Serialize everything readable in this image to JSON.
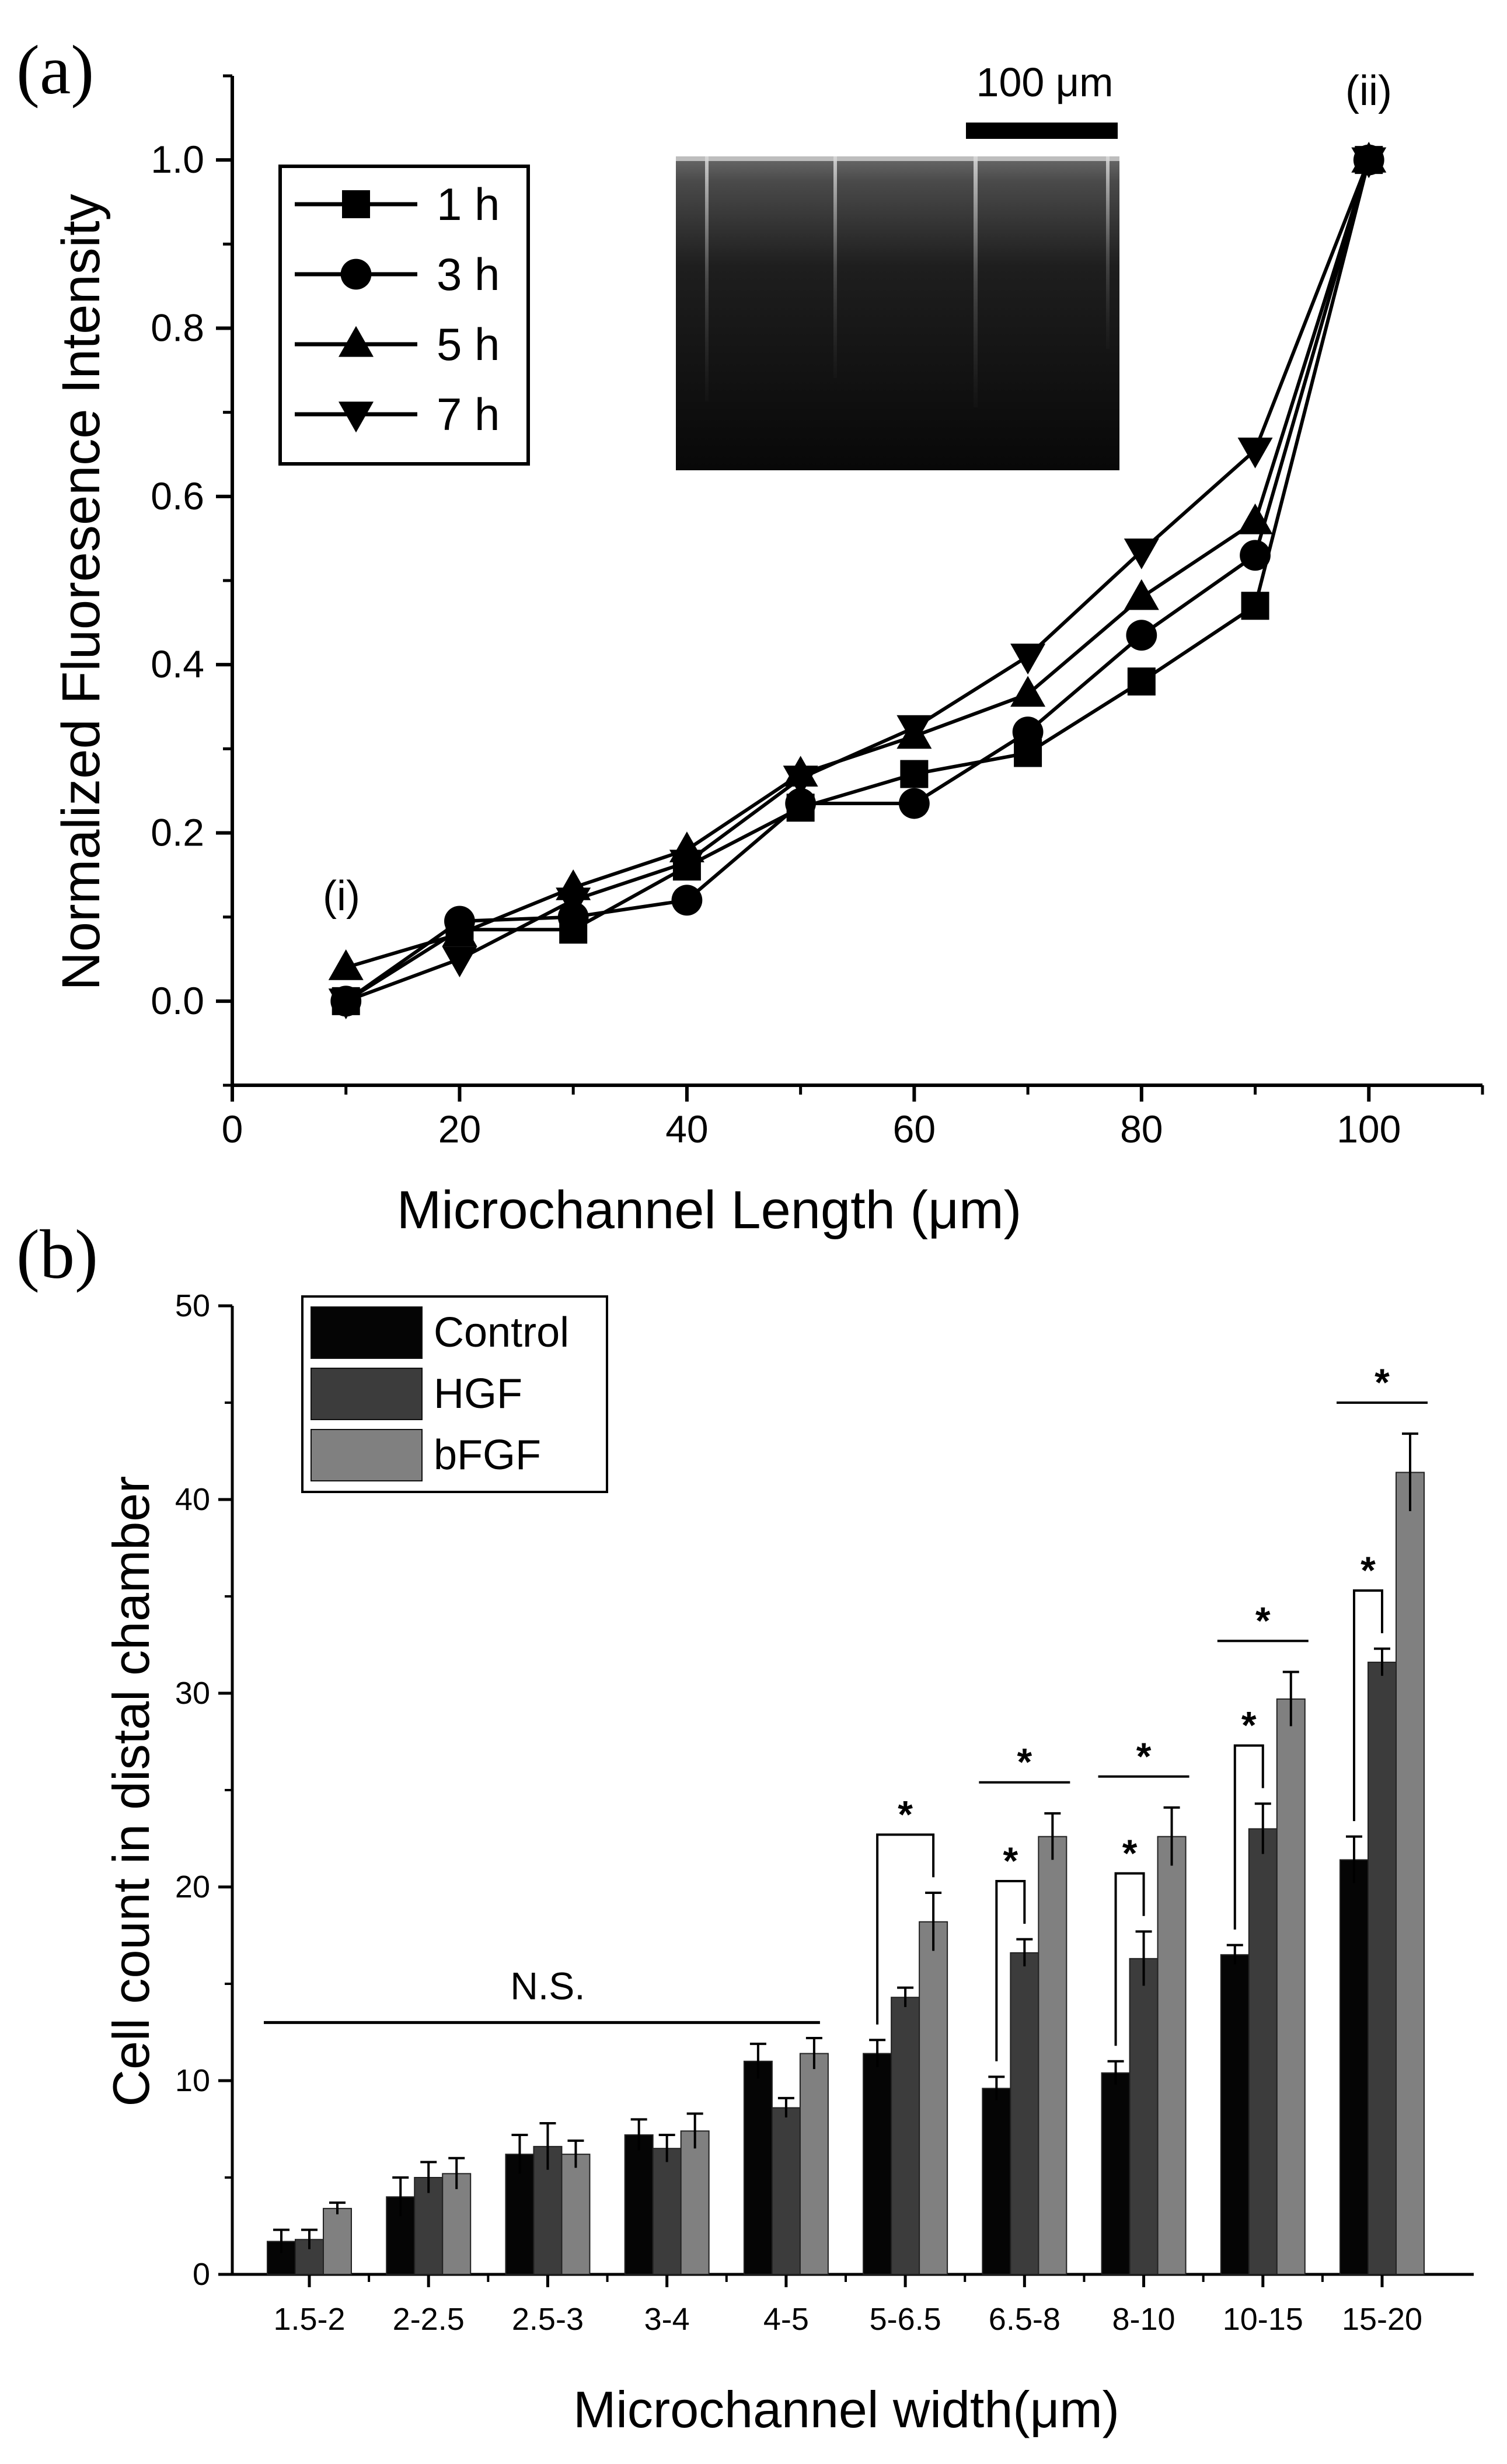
{
  "chart_data": [
    {
      "type": "line",
      "panel_label": "(a)",
      "xlabel": "Microchannel Length (μm)",
      "ylabel": "Normalized Fluoresence Intensity",
      "xlim": [
        0,
        110
      ],
      "ylim": [
        -0.1,
        1.1
      ],
      "x_ticks": [
        0,
        20,
        40,
        60,
        80,
        100
      ],
      "y_ticks": [
        0.0,
        0.2,
        0.4,
        0.6,
        0.8,
        1.0
      ],
      "x_tick_labels": [
        "0",
        "20",
        "40",
        "60",
        "80",
        "100"
      ],
      "y_tick_labels": [
        "0.0",
        "0.2",
        "0.4",
        "0.6",
        "0.8",
        "1.0"
      ],
      "x": [
        10,
        20,
        30,
        40,
        50,
        60,
        70,
        80,
        90,
        100
      ],
      "series": [
        {
          "name": "1 h",
          "marker": "square",
          "values": [
            0.0,
            0.085,
            0.085,
            0.16,
            0.23,
            0.27,
            0.295,
            0.38,
            0.47,
            1.0
          ]
        },
        {
          "name": "3 h",
          "marker": "circle",
          "values": [
            0.0,
            0.095,
            0.1,
            0.12,
            0.235,
            0.235,
            0.32,
            0.435,
            0.53,
            1.0
          ]
        },
        {
          "name": "5 h",
          "marker": "triangle-up",
          "values": [
            0.04,
            0.08,
            0.135,
            0.18,
            0.27,
            0.315,
            0.365,
            0.48,
            0.57,
            1.0
          ]
        },
        {
          "name": "7 h",
          "marker": "triangle-down",
          "values": [
            0.0,
            0.05,
            0.12,
            0.165,
            0.265,
            0.325,
            0.41,
            0.535,
            0.655,
            1.0
          ]
        }
      ],
      "annotations": [
        "(i)",
        "(ii)"
      ],
      "scale_bar_label": "100 μm",
      "legend_position": "top-left"
    },
    {
      "type": "bar",
      "panel_label": "(b)",
      "xlabel": "Microchannel width(μm)",
      "ylabel": "Cell count in distal chamber",
      "ylim": [
        0,
        50
      ],
      "y_ticks": [
        0,
        10,
        20,
        30,
        40,
        50
      ],
      "y_tick_labels": [
        "0",
        "10",
        "20",
        "30",
        "40",
        "50"
      ],
      "categories": [
        "1.5-2",
        "2-2.5",
        "2.5-3",
        "3-4",
        "4-5",
        "5-6.5",
        "6.5-8",
        "8-10",
        "10-15",
        "15-20"
      ],
      "series": [
        {
          "name": "Control",
          "color": "#050505",
          "values": [
            1.7,
            4.0,
            6.2,
            7.2,
            11.0,
            11.4,
            9.6,
            10.4,
            16.5,
            21.4
          ],
          "errors": [
            0.6,
            1.0,
            1.0,
            0.8,
            0.9,
            0.7,
            0.6,
            0.6,
            0.5,
            1.2
          ]
        },
        {
          "name": "HGF",
          "color": "#3c3c3c",
          "values": [
            1.8,
            5.0,
            6.6,
            6.5,
            8.6,
            14.3,
            16.6,
            16.3,
            23.0,
            31.6
          ],
          "errors": [
            0.5,
            0.8,
            1.2,
            0.7,
            0.5,
            0.5,
            0.7,
            1.4,
            1.3,
            0.7
          ]
        },
        {
          "name": "bFGF",
          "color": "#808080",
          "values": [
            3.4,
            5.2,
            6.2,
            7.4,
            11.4,
            18.2,
            22.6,
            22.6,
            29.7,
            41.4
          ],
          "errors": [
            0.3,
            0.8,
            0.7,
            0.9,
            0.8,
            1.5,
            1.2,
            1.5,
            1.4,
            2.0
          ]
        }
      ],
      "significance": {
        "ns_label": "N.S.",
        "star_label": "*",
        "brackets": [
          {
            "category": "5-6.5",
            "from": "Control",
            "to": "bFGF",
            "style": "bracket"
          },
          {
            "category": "6.5-8",
            "from": "Control",
            "to": "HGF",
            "style": "bracket"
          },
          {
            "category": "6.5-8",
            "from": "Control",
            "to": "bFGF",
            "style": "line"
          },
          {
            "category": "8-10",
            "from": "Control",
            "to": "HGF",
            "style": "bracket"
          },
          {
            "category": "8-10",
            "from": "Control",
            "to": "bFGF",
            "style": "line"
          },
          {
            "category": "10-15",
            "from": "Control",
            "to": "HGF",
            "style": "bracket"
          },
          {
            "category": "10-15",
            "from": "Control",
            "to": "bFGF",
            "style": "line"
          },
          {
            "category": "15-20",
            "from": "Control",
            "to": "HGF",
            "style": "bracket"
          },
          {
            "category": "15-20",
            "from": "Control",
            "to": "bFGF",
            "style": "line"
          }
        ]
      },
      "legend_position": "top-left"
    }
  ]
}
